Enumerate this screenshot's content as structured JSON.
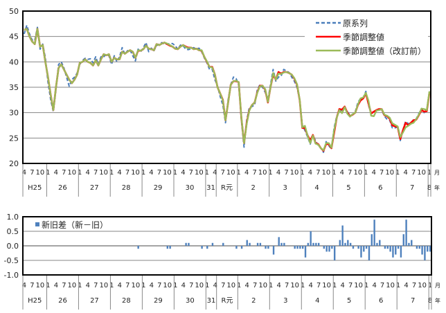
{
  "colors": {
    "original": "#4a7ebb",
    "sa_new": "#ff0000",
    "sa_old": "#9bbb59",
    "diff_bar": "#4f81bd",
    "grid": "#868686"
  },
  "axis_units": {
    "month": "月",
    "year": "年"
  },
  "chart_data": [
    {
      "type": "line",
      "title": "",
      "xlabel": "",
      "ylabel": "",
      "ylim": [
        20,
        50
      ],
      "yticks": [
        "20",
        "25",
        "30",
        "35",
        "40",
        "45",
        "50"
      ],
      "grid": true,
      "legend_position": "top-right",
      "x_start": "H25.4",
      "x_end": "R8.1",
      "month_tick_labels": [
        "1",
        "4",
        "7",
        "10"
      ],
      "year_labels": [
        {
          "label": "H25",
          "from": 0,
          "to": 8
        },
        {
          "label": "26",
          "from": 9,
          "to": 20
        },
        {
          "label": "27",
          "from": 21,
          "to": 32
        },
        {
          "label": "28",
          "from": 33,
          "to": 44
        },
        {
          "label": "29",
          "from": 45,
          "to": 56
        },
        {
          "label": "30",
          "from": 57,
          "to": 68
        },
        {
          "label": "31",
          "from": 69,
          "to": 72
        },
        {
          "label": "R元",
          "from": 73,
          "to": 80
        },
        {
          "label": "2",
          "from": 81,
          "to": 92
        },
        {
          "label": "3",
          "from": 93,
          "to": 104
        },
        {
          "label": "4",
          "from": 105,
          "to": 116
        },
        {
          "label": "5",
          "from": 117,
          "to": 128
        },
        {
          "label": "6",
          "from": 129,
          "to": 140
        },
        {
          "label": "7",
          "from": 141,
          "to": 152
        },
        {
          "label": "8",
          "from": 153,
          "to": 153
        }
      ],
      "series": [
        {
          "name": "原系列",
          "style": "dashed",
          "values": [
            45.5,
            47.2,
            45.5,
            44.3,
            44.2,
            46.8,
            42.5,
            43.5,
            40.8,
            36,
            32.5,
            30.2,
            34.5,
            39.5,
            40,
            38.8,
            37,
            35.2,
            36.5,
            37,
            37.8,
            39.5,
            40.3,
            40.7,
            40.5,
            40.6,
            39.8,
            41,
            39.5,
            41,
            41,
            41.5,
            41.2,
            39.5,
            41.2,
            40,
            41,
            42.8,
            41.5,
            42.2,
            42.3,
            41.2,
            40.2,
            42.5,
            42,
            42.8,
            43.8,
            42,
            42.7,
            42.2,
            43.2,
            43.5,
            43.8,
            43.5,
            43.5,
            43.6,
            43.6,
            43.2,
            42.5,
            43.3,
            43.2,
            42.5,
            42.4,
            42.6,
            42.8,
            42.5,
            42.7,
            42,
            40.8,
            39.8,
            38.5,
            38.5,
            36.5,
            35.2,
            33.2,
            31.5,
            28,
            32.5,
            35.5,
            37,
            36.7,
            35.5,
            28.5,
            23.2,
            28.5,
            31,
            31.2,
            31.5,
            34.5,
            35.5,
            35,
            34,
            32.5,
            35.5,
            38.5,
            36.2,
            37,
            37.2,
            38.5,
            38.2,
            37.9,
            37,
            36.2,
            35,
            32.5,
            27.5,
            26.5,
            25.2,
            23.8,
            25.5,
            24.5,
            23.5,
            23,
            22.2,
            24.3,
            23.5,
            22.8,
            27,
            29.3,
            30.3,
            30.5,
            31,
            30.2,
            29.5,
            29.6,
            30.2,
            32,
            32.8,
            33,
            34.2,
            31.5,
            29.8,
            30.2,
            30.5,
            30.7,
            30.5,
            29.3,
            28.7,
            28.5,
            27,
            27,
            27.2,
            24.5,
            26.6,
            28.3,
            27.8,
            28,
            28.6,
            28.8,
            29.8,
            30.8,
            30,
            30.5,
            34.2
          ]
        },
        {
          "name": "季節調整値",
          "style": "solid",
          "values": [
            46.3,
            46.5,
            45,
            44,
            43.5,
            46.5,
            43,
            43.3,
            40,
            37,
            33.5,
            30.5,
            35,
            38.8,
            39.5,
            38.5,
            37.5,
            36.5,
            35.8,
            36.5,
            37.5,
            39.8,
            40,
            40.5,
            40,
            39.8,
            39.3,
            40.3,
            39.3,
            40.5,
            41.5,
            41.3,
            41.5,
            40,
            40.8,
            40.5,
            40.5,
            42,
            41.6,
            42,
            42.3,
            42,
            40.8,
            42.2,
            42.2,
            42.5,
            43.2,
            42.6,
            42.5,
            42.3,
            43.5,
            43.3,
            43.6,
            43.8,
            43.5,
            43.2,
            43,
            42.6,
            42.5,
            43,
            43.3,
            43,
            42.8,
            42.8,
            42.5,
            42.6,
            42.3,
            42.2,
            41,
            40,
            39,
            39,
            37.5,
            35,
            33.8,
            32.5,
            28.5,
            32,
            35.5,
            36.2,
            36.2,
            36,
            29,
            24,
            28,
            30.5,
            31.5,
            32,
            34,
            35.3,
            35.3,
            34.5,
            32,
            35,
            37.5,
            36.5,
            38,
            37.7,
            38,
            38,
            37.8,
            37.5,
            36.7,
            35.5,
            32.5,
            27,
            27,
            25.5,
            24.5,
            25.6,
            24,
            23.8,
            23,
            22.5,
            23.8,
            23.8,
            23,
            26,
            29,
            30.7,
            30.6,
            31.2,
            30,
            29.3,
            29.6,
            30,
            31.5,
            32.4,
            32.8,
            33.8,
            31.8,
            29.8,
            30.2,
            30.5,
            30.7,
            30.7,
            29.5,
            29.3,
            28.8,
            27.5,
            27.3,
            27.2,
            24.8,
            26.5,
            28,
            27.5,
            28,
            28.5,
            28.6,
            29.5,
            30.5,
            30.2,
            30.3,
            34
          ]
        },
        {
          "name": "季節調整値（改訂前）",
          "style": "solid",
          "values": [
            46.3,
            46.5,
            45,
            44,
            43.5,
            46.5,
            43,
            43.3,
            40,
            37,
            33.5,
            30.5,
            35,
            38.8,
            39.5,
            38.5,
            37.5,
            36.5,
            35.8,
            36.5,
            37.5,
            39.8,
            40,
            40.5,
            40,
            39.8,
            39.3,
            40.3,
            39.3,
            40.5,
            41.5,
            41.3,
            41.5,
            40,
            40.8,
            40.5,
            40.5,
            42,
            41.6,
            42,
            42.3,
            42,
            40.8,
            42.3,
            42.2,
            42.5,
            43.2,
            42.6,
            42.5,
            42.3,
            43.5,
            43.3,
            43.6,
            43.8,
            43.6,
            43.3,
            43,
            42.6,
            42.5,
            43,
            43.3,
            42.9,
            42.7,
            42.8,
            42.5,
            42.6,
            42.3,
            42.3,
            41,
            40.1,
            39,
            38.9,
            37.5,
            35,
            33.8,
            32.4,
            28.5,
            32,
            35.5,
            36.2,
            36.3,
            36,
            29.1,
            24,
            27.8,
            30.4,
            31.5,
            32,
            33.9,
            35.2,
            35.3,
            34.6,
            32.1,
            35,
            37.8,
            36.5,
            37.7,
            37.6,
            37.9,
            38,
            37.8,
            37.5,
            36.8,
            35.6,
            32.6,
            27.1,
            27.4,
            25.4,
            24.0,
            25.5,
            23.9,
            23.7,
            23,
            22.6,
            24.0,
            24.0,
            23.1,
            26.5,
            29,
            30.5,
            29.9,
            31.1,
            29.8,
            29.2,
            29.7,
            30,
            31.6,
            32.8,
            33.0,
            33.9,
            32.3,
            29.4,
            29.3,
            30.4,
            30.5,
            30.7,
            29.6,
            29.4,
            29.0,
            27.9,
            27.6,
            27.3,
            25.2,
            26.1,
            27.1,
            27.4,
            27.8,
            28,
            28.7,
            29.6,
            30.8,
            30.7,
            30.5,
            34.2
          ]
        }
      ]
    },
    {
      "type": "bar",
      "title": "",
      "xlabel": "",
      "ylabel": "",
      "ylim": [
        -1.0,
        1.0
      ],
      "yticks": [
        "-1.0",
        "-0.5",
        "0.0",
        "0.5",
        "1.0"
      ],
      "grid": true,
      "legend_position": "top-left",
      "series": [
        {
          "name": "新旧差（新－旧）",
          "values": [
            0,
            0,
            0,
            0,
            0,
            0,
            0,
            0,
            0,
            0,
            0,
            0,
            0,
            0,
            0,
            0,
            0,
            0,
            0,
            0,
            0,
            0,
            0,
            0,
            0,
            0,
            0,
            0,
            0,
            0,
            0,
            0,
            0,
            0,
            0,
            0,
            0,
            0,
            0,
            0,
            0,
            0,
            0,
            -0.1,
            0,
            0,
            0,
            0,
            0,
            0,
            0,
            0,
            0,
            0,
            -0.1,
            -0.1,
            0,
            0,
            0,
            0,
            0,
            0.1,
            0.1,
            0,
            0,
            0,
            0,
            -0.1,
            0,
            -0.1,
            0,
            0.1,
            0,
            0,
            0,
            0.1,
            0,
            0,
            0,
            0,
            -0.1,
            0,
            -0.1,
            0,
            0.2,
            0.1,
            0,
            0,
            0.1,
            0.1,
            0,
            -0.1,
            -0.1,
            0,
            -0.3,
            0,
            0.3,
            0.1,
            0.1,
            0,
            0,
            0,
            -0.1,
            -0.1,
            -0.1,
            -0.1,
            -0.4,
            0.1,
            0.5,
            0.1,
            0.1,
            0.1,
            0,
            -0.1,
            -0.2,
            -0.2,
            -0.1,
            -0.5,
            0,
            0.2,
            0.7,
            0.1,
            0.2,
            0.1,
            -0.1,
            0,
            -0.1,
            -0.4,
            -0.2,
            -0.1,
            -0.5,
            0.4,
            0.9,
            0.1,
            0.2,
            0,
            -0.1,
            -0.1,
            -0.2,
            -0.4,
            -0.3,
            -0.1,
            -0.4,
            0.4,
            0.9,
            0.1,
            0.2,
            0,
            -0.1,
            -0.1,
            -0.3,
            -0.5,
            -0.2,
            -0.2
          ]
        }
      ]
    }
  ]
}
